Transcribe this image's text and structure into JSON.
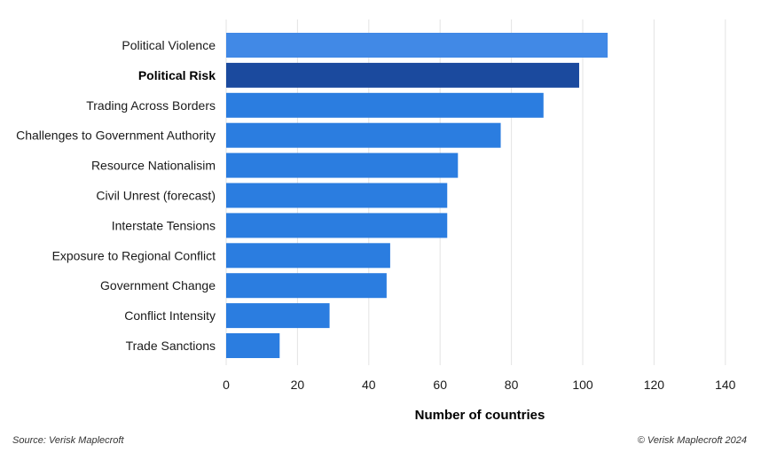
{
  "chart_data": {
    "type": "bar",
    "orientation": "horizontal",
    "categories": [
      "Political Violence",
      "Political Risk",
      "Trading Across Borders",
      "Challenges to Government Authority",
      "Resource Nationalisim",
      "Civil Unrest (forecast)",
      "Interstate Tensions",
      "Exposure to Regional Conflict",
      "Government Change",
      "Conflict Intensity",
      "Trade Sanctions"
    ],
    "values": [
      107,
      99,
      89,
      77,
      65,
      62,
      62,
      46,
      45,
      29,
      15
    ],
    "highlighted_category": "Political Risk",
    "xlabel": "Number of countries",
    "ylabel": "",
    "xlim": [
      0,
      140
    ],
    "xticks": [
      0,
      20,
      40,
      60,
      80,
      100,
      120,
      140
    ],
    "grid": "vertical",
    "colors": {
      "bar_top": "#4189e6",
      "bar": "#2b7de0",
      "bar_highlight": "#1b4a9e",
      "grid": "#e3e3e3"
    }
  },
  "footer": {
    "source": "Source: Verisk Maplecroft",
    "copyright": "© Verisk Maplecroft 2024"
  }
}
